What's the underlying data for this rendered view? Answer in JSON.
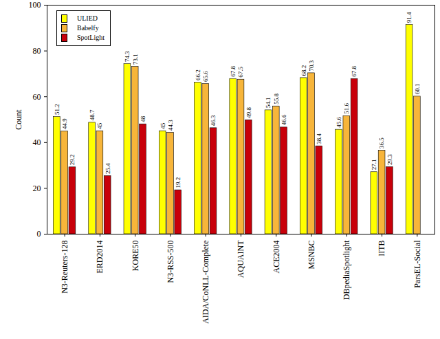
{
  "chart_data": {
    "type": "bar",
    "categories": [
      "N3-Reuters-128",
      "ERD2014",
      "KORE50",
      "N3-RSS-500",
      "AIDA/CoNLL-Complete",
      "AQUAINT",
      "ACE2004",
      "MSNBC",
      "DBpediaSpotlight",
      "IITB",
      "ParsEL-Social"
    ],
    "series": [
      {
        "name": "ULIED",
        "color": "#ffff00",
        "values": [
          51.2,
          48.7,
          74.3,
          45,
          66.2,
          67.8,
          54.1,
          68.2,
          45.6,
          27.1,
          91.4
        ]
      },
      {
        "name": "Babelfy",
        "color": "#f7b53a",
        "values": [
          44.9,
          45,
          73.1,
          44.3,
          65.6,
          67.5,
          55.8,
          70.3,
          51.6,
          36.5,
          60.1
        ]
      },
      {
        "name": "SpotLight",
        "color": "#c8000a",
        "values": [
          29.2,
          25.4,
          48,
          19.2,
          46.3,
          49.8,
          46.6,
          38.4,
          67.8,
          29.3,
          null
        ]
      }
    ],
    "y_label": "Count",
    "ylim": [
      0,
      100
    ],
    "yticks": [
      0,
      20,
      40,
      60,
      80,
      100
    ],
    "data_labels": true,
    "legend": "top-left"
  }
}
